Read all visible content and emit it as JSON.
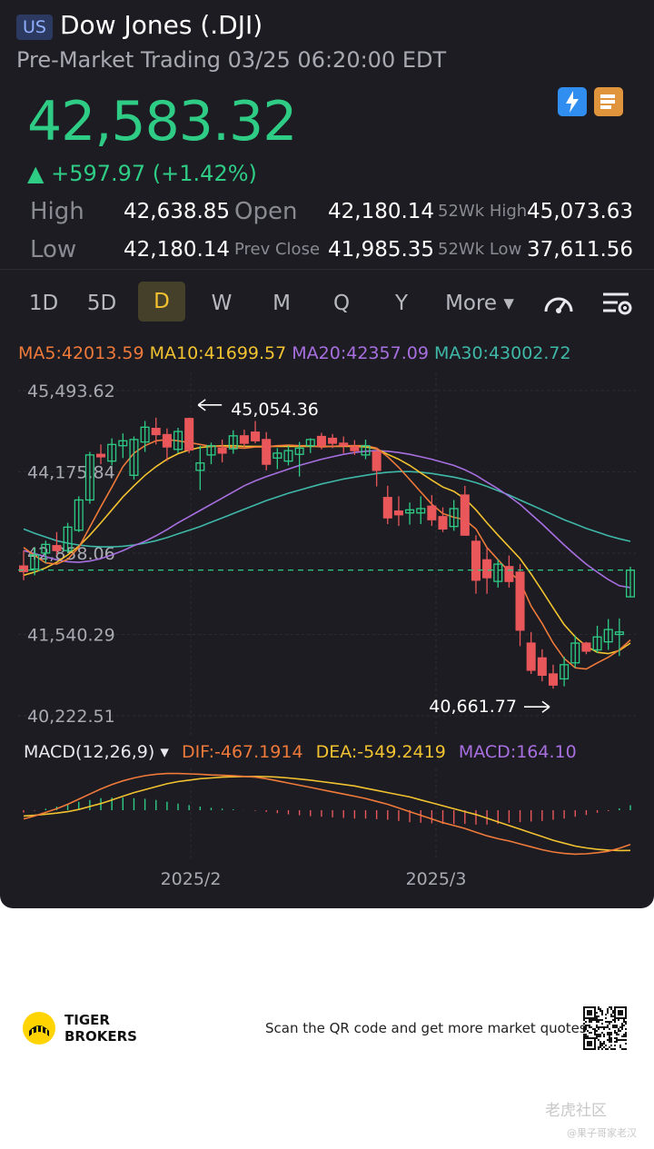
{
  "header": {
    "market_tag": "US",
    "title": "Dow Jones (.DJI)",
    "subtitle": "Pre-Market Trading 03/25 06:20:00 EDT"
  },
  "quote": {
    "price": "42,583.32",
    "change": "▲ +597.97 (+1.42%)",
    "stats": {
      "high_label": "High",
      "high": "42,638.85",
      "low_label": "Low",
      "low": "42,180.14",
      "open_label": "Open",
      "open": "42,180.14",
      "prev_close_label": "Prev Close",
      "prev_close": "41,985.35",
      "wk52_high_label": "52Wk High",
      "wk52_high": "45,073.63",
      "wk52_low_label": "52Wk Low",
      "wk52_low": "37,611.56"
    }
  },
  "periods": [
    {
      "label": "1D",
      "active": false
    },
    {
      "label": "5D",
      "active": false
    },
    {
      "label": "D",
      "active": true
    },
    {
      "label": "W",
      "active": false
    },
    {
      "label": "M",
      "active": false
    },
    {
      "label": "Q",
      "active": false
    },
    {
      "label": "Y",
      "active": false
    },
    {
      "label": "More ▾",
      "active": false
    }
  ],
  "toolbar_icons": [
    "gauge-icon",
    "chart-settings-icon"
  ],
  "indicators": {
    "ma5": "MA5:42013.59",
    "ma10": "MA10:41699.57",
    "ma20": "MA20:42357.09",
    "ma30": "MA30:43002.72",
    "macd_label": "MACD(12,26,9) ▾",
    "dif": "DIF:-467.1914",
    "dea": "DEA:-549.2419",
    "macd": "MACD:164.10"
  },
  "colors": {
    "up": "#2fcc86",
    "down": "#e9575a",
    "ma5": "#ef7a3a",
    "ma10": "#f2c230",
    "ma20": "#a86fe0",
    "ma30": "#3fb8a8",
    "accent_period": "#f2c230"
  },
  "chart_data": {
    "type": "candlestick",
    "y_axis_labels": [
      "45,493.62",
      "44,175.84",
      "42,858.06",
      "41,540.29",
      "40,222.51"
    ],
    "ylim": [
      40222.51,
      45493.62
    ],
    "x_axis_labels": [
      "2025/2",
      "2025/3"
    ],
    "annotations": {
      "max": "45,054.36",
      "min": "40,661.77"
    },
    "last_price_line": 42583.32,
    "candles": [
      {
        "o": 42650,
        "h": 42900,
        "l": 42420,
        "c": 42560
      },
      {
        "o": 42600,
        "h": 42950,
        "l": 42500,
        "c": 42830
      },
      {
        "o": 42860,
        "h": 43060,
        "l": 42700,
        "c": 43000
      },
      {
        "o": 42980,
        "h": 43200,
        "l": 42830,
        "c": 42900
      },
      {
        "o": 42900,
        "h": 43350,
        "l": 42860,
        "c": 43280
      },
      {
        "o": 43230,
        "h": 43780,
        "l": 43200,
        "c": 43720
      },
      {
        "o": 43720,
        "h": 44500,
        "l": 43660,
        "c": 44450
      },
      {
        "o": 44460,
        "h": 44620,
        "l": 44300,
        "c": 44420
      },
      {
        "o": 44350,
        "h": 44720,
        "l": 44280,
        "c": 44620
      },
      {
        "o": 44600,
        "h": 44800,
        "l": 44400,
        "c": 44680
      },
      {
        "o": 44120,
        "h": 44750,
        "l": 44050,
        "c": 44700
      },
      {
        "o": 44660,
        "h": 45000,
        "l": 44500,
        "c": 44900
      },
      {
        "o": 44880,
        "h": 45054,
        "l": 44620,
        "c": 44780
      },
      {
        "o": 44780,
        "h": 44880,
        "l": 44350,
        "c": 44580
      },
      {
        "o": 44540,
        "h": 44890,
        "l": 44480,
        "c": 44830
      },
      {
        "o": 45040,
        "h": 45054,
        "l": 44480,
        "c": 44530
      },
      {
        "o": 44200,
        "h": 44600,
        "l": 43880,
        "c": 44320
      },
      {
        "o": 44450,
        "h": 44650,
        "l": 44300,
        "c": 44600
      },
      {
        "o": 44560,
        "h": 44700,
        "l": 44330,
        "c": 44480
      },
      {
        "o": 44550,
        "h": 44850,
        "l": 44470,
        "c": 44760
      },
      {
        "o": 44760,
        "h": 44860,
        "l": 44580,
        "c": 44640
      },
      {
        "o": 44820,
        "h": 45000,
        "l": 44640,
        "c": 44680
      },
      {
        "o": 44700,
        "h": 44820,
        "l": 44200,
        "c": 44300
      },
      {
        "o": 44400,
        "h": 44560,
        "l": 44220,
        "c": 44480
      },
      {
        "o": 44350,
        "h": 44600,
        "l": 44280,
        "c": 44520
      },
      {
        "o": 44460,
        "h": 44660,
        "l": 44100,
        "c": 44560
      },
      {
        "o": 44600,
        "h": 44720,
        "l": 44480,
        "c": 44700
      },
      {
        "o": 44750,
        "h": 44810,
        "l": 44540,
        "c": 44600
      },
      {
        "o": 44720,
        "h": 44790,
        "l": 44560,
        "c": 44640
      },
      {
        "o": 44640,
        "h": 44750,
        "l": 44480,
        "c": 44600
      },
      {
        "o": 44580,
        "h": 44690,
        "l": 44450,
        "c": 44520
      },
      {
        "o": 44450,
        "h": 44700,
        "l": 44380,
        "c": 44600
      },
      {
        "o": 44500,
        "h": 44560,
        "l": 43940,
        "c": 44200
      },
      {
        "o": 43760,
        "h": 43950,
        "l": 43330,
        "c": 43430
      },
      {
        "o": 43540,
        "h": 43780,
        "l": 43300,
        "c": 43480
      },
      {
        "o": 43510,
        "h": 43680,
        "l": 43320,
        "c": 43560
      },
      {
        "o": 43510,
        "h": 43780,
        "l": 43330,
        "c": 43580
      },
      {
        "o": 43620,
        "h": 43800,
        "l": 43300,
        "c": 43400
      },
      {
        "o": 43450,
        "h": 43600,
        "l": 43200,
        "c": 43250
      },
      {
        "o": 43290,
        "h": 43720,
        "l": 43220,
        "c": 43580
      },
      {
        "o": 43800,
        "h": 43950,
        "l": 43150,
        "c": 43150
      },
      {
        "o": 43050,
        "h": 43150,
        "l": 42200,
        "c": 42420
      },
      {
        "o": 42750,
        "h": 42950,
        "l": 42200,
        "c": 42460
      },
      {
        "o": 42400,
        "h": 42760,
        "l": 42300,
        "c": 42680
      },
      {
        "o": 42640,
        "h": 42820,
        "l": 42300,
        "c": 42400
      },
      {
        "o": 42550,
        "h": 42680,
        "l": 41350,
        "c": 41610
      },
      {
        "o": 41400,
        "h": 41580,
        "l": 40900,
        "c": 40960
      },
      {
        "o": 41160,
        "h": 41300,
        "l": 40780,
        "c": 40880
      },
      {
        "o": 40900,
        "h": 41050,
        "l": 40661,
        "c": 40720
      },
      {
        "o": 40820,
        "h": 41180,
        "l": 40700,
        "c": 41050
      },
      {
        "o": 41080,
        "h": 41520,
        "l": 41000,
        "c": 41400
      },
      {
        "o": 41400,
        "h": 41420,
        "l": 41220,
        "c": 41270
      },
      {
        "o": 41290,
        "h": 41680,
        "l": 41240,
        "c": 41500
      },
      {
        "o": 41420,
        "h": 41790,
        "l": 41290,
        "c": 41620
      },
      {
        "o": 41540,
        "h": 41800,
        "l": 41190,
        "c": 41580
      },
      {
        "o": 42150,
        "h": 42638,
        "l": 42150,
        "c": 42583
      }
    ],
    "ma5": [
      42950,
      42820,
      42700,
      42680,
      42760,
      42950,
      43280,
      43610,
      43930,
      44260,
      44480,
      44600,
      44680,
      44700,
      44680,
      44650,
      44620,
      44590,
      44590,
      44570,
      44560,
      44580,
      44580,
      44600,
      44610,
      44600,
      44600,
      44580,
      44590,
      44600,
      44600,
      44600,
      44560,
      44420,
      44250,
      44050,
      43850,
      43650,
      43500,
      43440,
      43400,
      43250,
      42950,
      42750,
      42560,
      42400,
      42000,
      41720,
      41400,
      41150,
      41000,
      40980,
      41080,
      41170,
      41290,
      41450
    ],
    "ma10": [
      42500,
      42550,
      42620,
      42710,
      42830,
      42970,
      43150,
      43350,
      43560,
      43770,
      43950,
      44120,
      44260,
      44380,
      44470,
      44530,
      44570,
      44590,
      44600,
      44600,
      44590,
      44590,
      44590,
      44590,
      44590,
      44590,
      44590,
      44590,
      44590,
      44590,
      44590,
      44580,
      44550,
      44460,
      44380,
      44280,
      44160,
      44040,
      43930,
      43860,
      43740,
      43560,
      43350,
      43150,
      42960,
      42770,
      42520,
      42250,
      41970,
      41700,
      41500,
      41350,
      41250,
      41230,
      41280,
      41400
    ],
    "ma20": [
      42900,
      42850,
      42800,
      42750,
      42720,
      42710,
      42730,
      42770,
      42830,
      42900,
      42980,
      43050,
      43140,
      43240,
      43350,
      43450,
      43550,
      43650,
      43750,
      43850,
      43950,
      44030,
      44100,
      44160,
      44220,
      44280,
      44330,
      44380,
      44420,
      44460,
      44490,
      44510,
      44520,
      44510,
      44490,
      44460,
      44420,
      44380,
      44330,
      44280,
      44210,
      44120,
      44010,
      43900,
      43780,
      43650,
      43490,
      43330,
      43160,
      42990,
      42830,
      42680,
      42550,
      42430,
      42330,
      42300
    ],
    "ma30": [
      43250,
      43180,
      43120,
      43060,
      43020,
      42990,
      42970,
      42960,
      42960,
      42970,
      42990,
      43020,
      43060,
      43110,
      43170,
      43230,
      43290,
      43360,
      43430,
      43500,
      43570,
      43640,
      43710,
      43770,
      43830,
      43880,
      43930,
      43980,
      44020,
      44060,
      44090,
      44120,
      44150,
      44170,
      44180,
      44180,
      44170,
      44150,
      44120,
      44090,
      44050,
      44000,
      43940,
      43870,
      43800,
      43720,
      43640,
      43560,
      43480,
      43400,
      43330,
      43260,
      43200,
      43140,
      43090,
      43050
    ],
    "macd_dif": [
      -120,
      -80,
      -30,
      20,
      80,
      150,
      220,
      290,
      350,
      400,
      440,
      470,
      490,
      500,
      500,
      495,
      490,
      480,
      475,
      470,
      460,
      450,
      430,
      400,
      370,
      340,
      310,
      280,
      250,
      220,
      190,
      160,
      120,
      80,
      30,
      -20,
      -70,
      -120,
      -170,
      -210,
      -250,
      -300,
      -350,
      -390,
      -420,
      -460,
      -500,
      -540,
      -570,
      -590,
      -600,
      -595,
      -580,
      -560,
      -520,
      -467
    ],
    "macd_dea": [
      -80,
      -70,
      -55,
      -40,
      -20,
      10,
      50,
      90,
      140,
      190,
      240,
      280,
      320,
      360,
      390,
      410,
      430,
      440,
      450,
      455,
      458,
      460,
      458,
      450,
      440,
      425,
      410,
      390,
      370,
      350,
      330,
      300,
      270,
      240,
      210,
      180,
      140,
      100,
      60,
      20,
      -20,
      -60,
      -110,
      -160,
      -210,
      -260,
      -310,
      -360,
      -410,
      -450,
      -490,
      -515,
      -535,
      -545,
      -550,
      -549
    ]
  },
  "footer": {
    "brand_line1": "TIGER",
    "brand_line2": "BROKERS",
    "scan_text": "Scan the QR code and get more market quotes",
    "watermark_main": "老虎社区",
    "watermark_user": "@果子哥家老汉"
  }
}
